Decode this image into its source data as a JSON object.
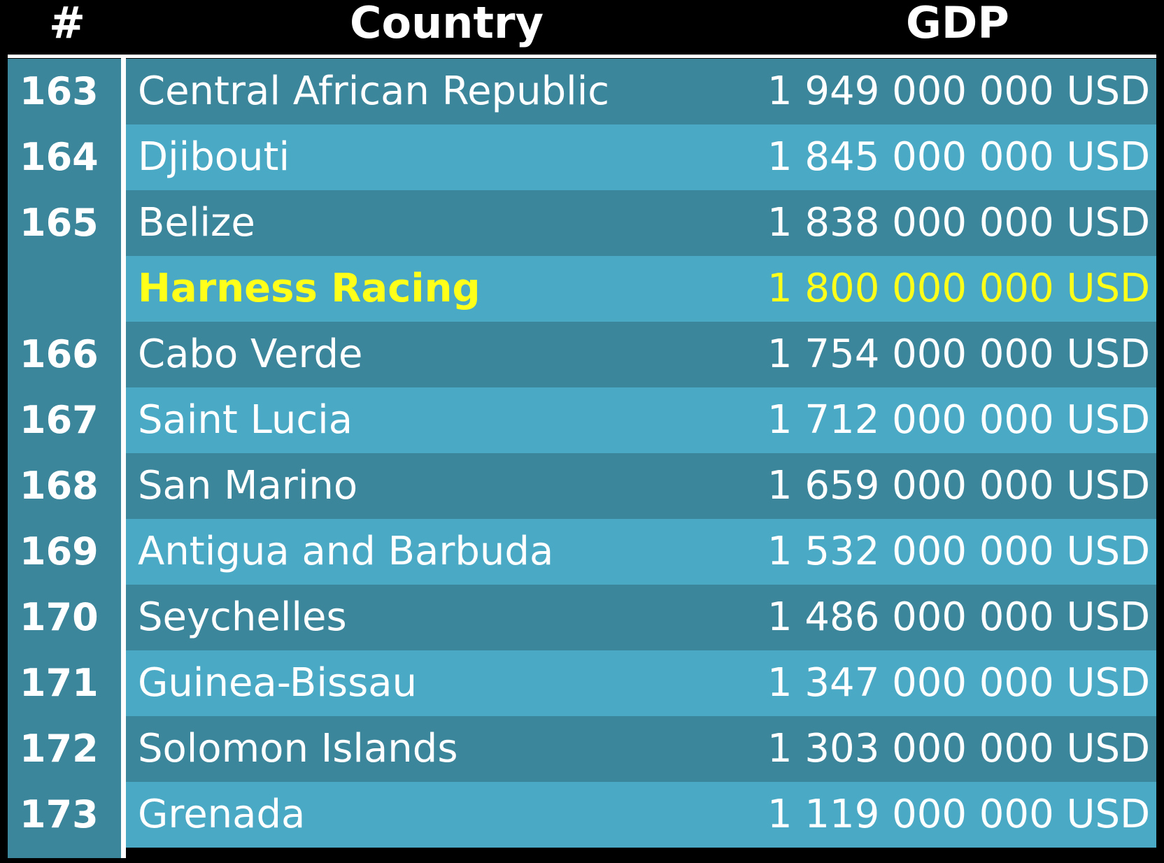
{
  "chart_data": {
    "type": "table",
    "columns": [
      "#",
      "Country",
      "GDP"
    ],
    "rows": [
      {
        "rank": "163",
        "country": "Central African Republic",
        "gdp": "1 949 000 000 USD",
        "highlight": false
      },
      {
        "rank": "164",
        "country": "Djibouti",
        "gdp": "1 845 000 000 USD",
        "highlight": false
      },
      {
        "rank": "165",
        "country": "Belize",
        "gdp": "1 838 000 000 USD",
        "highlight": false
      },
      {
        "rank": "",
        "country": "Harness Racing",
        "gdp": "1 800 000 000 USD",
        "highlight": true
      },
      {
        "rank": "166",
        "country": "Cabo Verde",
        "gdp": "1 754 000 000 USD",
        "highlight": false
      },
      {
        "rank": "167",
        "country": "Saint Lucia",
        "gdp": "1 712 000 000 USD",
        "highlight": false
      },
      {
        "rank": "168",
        "country": "San Marino",
        "gdp": "1 659 000 000 USD",
        "highlight": false
      },
      {
        "rank": "169",
        "country": "Antigua and Barbuda",
        "gdp": "1 532 000 000 USD",
        "highlight": false
      },
      {
        "rank": "170",
        "country": "Seychelles",
        "gdp": "1 486 000 000 USD",
        "highlight": false
      },
      {
        "rank": "171",
        "country": "Guinea-Bissau",
        "gdp": "1 347 000 000 USD",
        "highlight": false
      },
      {
        "rank": "172",
        "country": "Solomon Islands",
        "gdp": "1 303 000 000 USD",
        "highlight": false
      },
      {
        "rank": "173",
        "country": "Grenada",
        "gdp": "1 119 000 000 USD",
        "highlight": false
      }
    ]
  },
  "colors": {
    "background": "#000000",
    "row_dark": "#3b869b",
    "row_light": "#4aaac5",
    "text": "#ffffff",
    "highlight_text": "#ffff1a",
    "rule": "#ffffff"
  }
}
